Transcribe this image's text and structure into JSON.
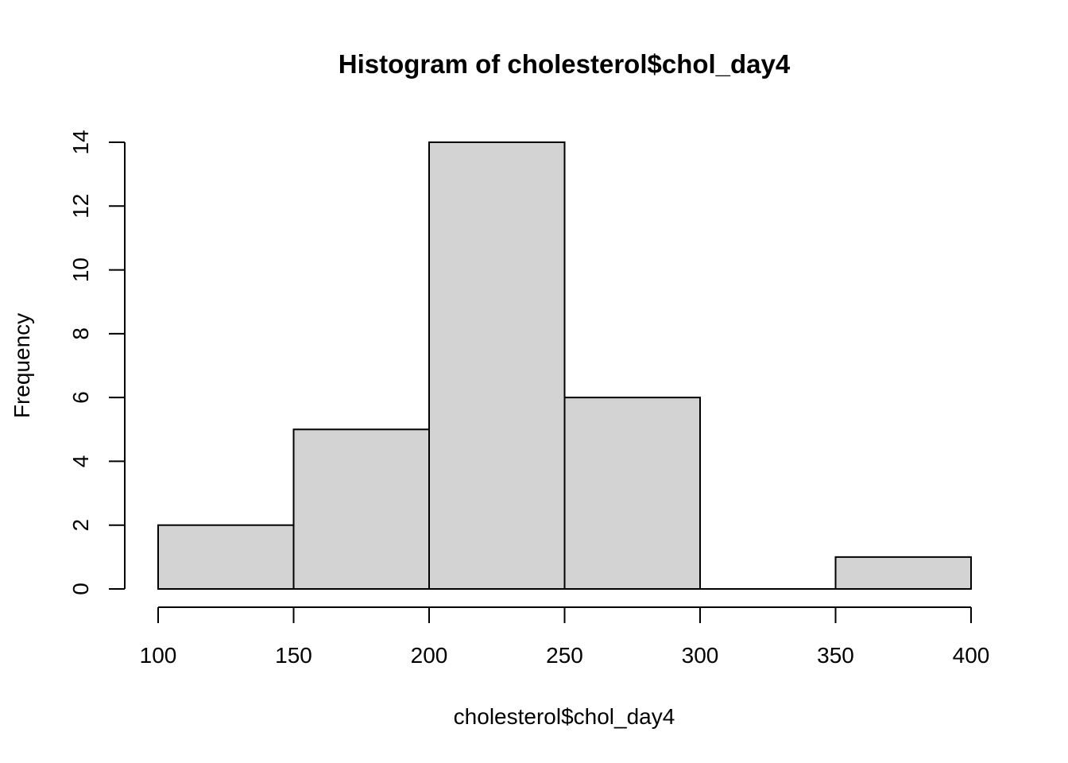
{
  "chart_data": {
    "type": "bar",
    "title": "Histogram of cholesterol$chol_day4",
    "xlabel": "cholesterol$chol_day4",
    "ylabel": "Frequency",
    "bins": [
      {
        "from": 100,
        "to": 150,
        "count": 2
      },
      {
        "from": 150,
        "to": 200,
        "count": 5
      },
      {
        "from": 200,
        "to": 250,
        "count": 14
      },
      {
        "from": 250,
        "to": 300,
        "count": 6
      },
      {
        "from": 300,
        "to": 350,
        "count": 0
      },
      {
        "from": 350,
        "to": 400,
        "count": 1
      }
    ],
    "x_ticks": [
      100,
      150,
      200,
      250,
      300,
      350,
      400
    ],
    "y_ticks": [
      0,
      2,
      4,
      6,
      8,
      10,
      12,
      14
    ],
    "xlim": [
      100,
      400
    ],
    "ylim": [
      0,
      14
    ],
    "grid": false,
    "bar_color": "#d3d3d3"
  }
}
